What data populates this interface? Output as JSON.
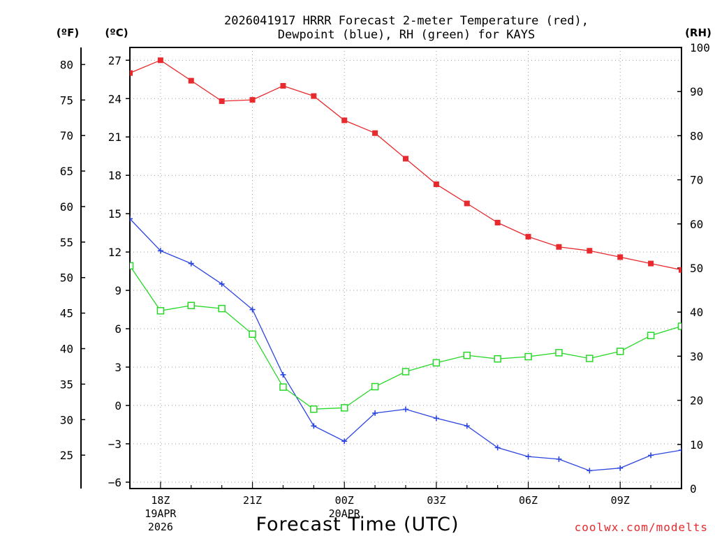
{
  "chart_data": {
    "type": "line",
    "title_lines": [
      "2026041917 HRRR Forecast 2-meter Temperature (red),",
      "Dewpoint (blue), RH (green) for KAYS"
    ],
    "xlabel": "Forecast Time (UTC)",
    "credit": "coolwx.com/modelts",
    "units": {
      "fahrenheit": "(ºF)",
      "celsius": "(ºC)",
      "rh": "(RH)"
    },
    "hours": [
      17,
      18,
      19,
      20,
      21,
      22,
      23,
      24,
      25,
      26,
      27,
      28,
      29,
      30,
      31,
      32,
      33,
      34,
      35
    ],
    "x_ticks": [
      {
        "hour": 18,
        "lines": [
          "18Z",
          "19APR",
          "2026"
        ]
      },
      {
        "hour": 21,
        "lines": [
          "21Z"
        ]
      },
      {
        "hour": 24,
        "lines": [
          "00Z",
          "20APR"
        ]
      },
      {
        "hour": 27,
        "lines": [
          "03Z"
        ]
      },
      {
        "hour": 30,
        "lines": [
          "06Z"
        ]
      },
      {
        "hour": 33,
        "lines": [
          "09Z"
        ]
      }
    ],
    "xlim": [
      17,
      35
    ],
    "ylim_celsius": [
      -6.5,
      28
    ],
    "ylim_rh": [
      0,
      100
    ],
    "celsius_ticks": [
      27,
      24,
      21,
      18,
      15,
      12,
      9,
      6,
      3,
      0,
      -3,
      -6
    ],
    "celsius_tick_labels": [
      "27",
      "24",
      "21",
      "18",
      "15",
      "12",
      "9",
      "6",
      "3",
      "0",
      "−3",
      "−6"
    ],
    "fahrenheit_ticks": [
      80,
      75,
      70,
      65,
      60,
      55,
      50,
      45,
      40,
      35,
      30,
      25
    ],
    "fahrenheit_tick_labels": [
      "80",
      "75",
      "70",
      "65",
      "60",
      "55",
      "50",
      "45",
      "40",
      "35",
      "30",
      "25"
    ],
    "rh_ticks": [
      100,
      90,
      80,
      70,
      60,
      50,
      40,
      30,
      20,
      10,
      0
    ],
    "rh_tick_labels": [
      "100",
      "90",
      "80",
      "70",
      "60",
      "50",
      "40",
      "30",
      "20",
      "10",
      "0"
    ],
    "series": [
      {
        "name": "Temperature",
        "unit": "C",
        "axis": "celsius",
        "color": "#e8292d",
        "marker": "filled-square",
        "values": [
          26.0,
          27.0,
          25.4,
          23.8,
          23.9,
          25.0,
          24.2,
          22.3,
          21.3,
          19.3,
          17.3,
          15.8,
          14.3,
          13.2,
          12.4,
          12.1,
          11.6,
          11.1,
          10.6
        ]
      },
      {
        "name": "Dewpoint",
        "unit": "C",
        "axis": "celsius",
        "color": "#2b45e0",
        "marker": "plus",
        "values": [
          14.6,
          12.1,
          11.1,
          9.5,
          7.5,
          2.4,
          -1.6,
          -2.8,
          -0.6,
          -0.3,
          -1.0,
          -1.6,
          -3.3,
          -4.0,
          -4.2,
          -5.1,
          -4.9,
          -3.9,
          -3.5
        ]
      },
      {
        "name": "RH",
        "unit": "%",
        "axis": "rh",
        "color": "#27d827",
        "marker": "open-square",
        "values": [
          50.5,
          40.3,
          41.5,
          40.8,
          35.0,
          23.0,
          18.0,
          18.3,
          23.1,
          26.5,
          28.5,
          30.2,
          29.4,
          29.9,
          30.8,
          29.5,
          31.1,
          34.7,
          36.8
        ]
      }
    ]
  }
}
